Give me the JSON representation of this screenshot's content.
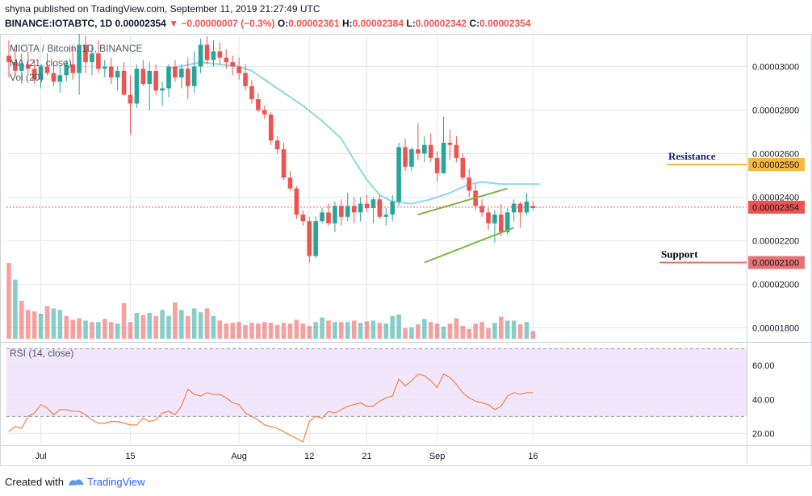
{
  "header": {
    "author": "shyna",
    "published_text": "published on TradingView.com, September 11, 2019 21:27:49 UTC",
    "symbol": "BINANCE:IOTABTC, 1D",
    "last_price": "0.00002354",
    "change": "▼ −0.00000007 (−0.3%)",
    "open_label": "O:",
    "open": "0.00002361",
    "high_label": "H:",
    "high": "0.00002384",
    "low_label": "L:",
    "low": "0.00002342",
    "close_label": "C:",
    "close": "0.00002354"
  },
  "overlay": {
    "title": "MIOTA / Bitcoin, 1D, BINANCE",
    "ma_label": "MA (21, close)",
    "vol_label": "Vol (20)"
  },
  "rsi_panel": {
    "label": "RSI (14, close)"
  },
  "footer": {
    "created_with": "Created with",
    "brand": "TradingView"
  },
  "colors": {
    "up": "#26a69a",
    "down": "#ef5350",
    "ma": "#8ed8e3",
    "resistance": "#f5b942",
    "support": "#e57373",
    "channel": "#7cb342",
    "rsi": "#f28b50",
    "rsi_band": "#f1e6fb"
  },
  "chart_data": [
    {
      "type": "candlestick",
      "title": "MIOTA / Bitcoin, 1D, BINANCE",
      "ylim": [
        1.75e-05,
        3.15e-05
      ],
      "y_ticks": [
        {
          "value": 1.8e-05,
          "label": "0.00001800"
        },
        {
          "value": 2e-05,
          "label": "0.00002000"
        },
        {
          "value": 2.2e-05,
          "label": "0.00002200"
        },
        {
          "value": 2.4e-05,
          "label": "0.00002400"
        },
        {
          "value": 2.6e-05,
          "label": "0.00002600"
        },
        {
          "value": 2.8e-05,
          "label": "0.00002800"
        },
        {
          "value": 3e-05,
          "label": "0.00003000"
        }
      ],
      "x_ticks": [
        {
          "index": 5,
          "label": "Jul"
        },
        {
          "index": 19,
          "label": "15"
        },
        {
          "index": 36,
          "label": "Aug"
        },
        {
          "index": 47,
          "label": "12"
        },
        {
          "index": 56,
          "label": "21"
        },
        {
          "index": 67,
          "label": "Sep"
        },
        {
          "index": 82,
          "label": "16"
        }
      ],
      "price_scale_labels": [
        {
          "value": 2.55e-05,
          "label": "0.00002550",
          "text": "Resistance"
        },
        {
          "value": 2.354e-05,
          "label": "0.00002354",
          "text": ""
        },
        {
          "value": 2.1e-05,
          "label": "0.00002100",
          "text": "Support"
        }
      ],
      "last_price": 2.354e-05,
      "resistance": 2.55e-05,
      "support": 2.1e-05,
      "channel": {
        "upper": [
          [
            64,
            2.32e-05
          ],
          [
            78,
            2.44e-05
          ]
        ],
        "lower": [
          [
            65,
            2.1e-05
          ],
          [
            79,
            2.26e-05
          ]
        ]
      },
      "candles": [
        [
          3.05e-05,
          3.12e-05,
          2.95e-05,
          3.02e-05
        ],
        [
          3.02e-05,
          3.08e-05,
          2.96e-05,
          2.98e-05
        ],
        [
          2.98e-05,
          3.06e-05,
          2.92e-05,
          3.01e-05
        ],
        [
          3.01e-05,
          3.07e-05,
          2.97e-05,
          2.99e-05
        ],
        [
          2.99e-05,
          3.03e-05,
          2.92e-05,
          2.94e-05
        ],
        [
          2.94e-05,
          3.01e-05,
          2.9e-05,
          3e-05
        ],
        [
          3e-05,
          3.06e-05,
          2.96e-05,
          2.97e-05
        ],
        [
          2.97e-05,
          3.02e-05,
          2.91e-05,
          2.93e-05
        ],
        [
          2.93e-05,
          3e-05,
          2.88e-05,
          2.96e-05
        ],
        [
          2.96e-05,
          3.03e-05,
          2.93e-05,
          3.01e-05
        ],
        [
          3.01e-05,
          3.1e-05,
          2.94e-05,
          2.97e-05
        ],
        [
          2.97e-05,
          3.15e-05,
          2.87e-05,
          3.1e-05
        ],
        [
          3.1e-05,
          3.14e-05,
          2.97e-05,
          3.02e-05
        ],
        [
          3.02e-05,
          3.1e-05,
          2.96e-05,
          3.06e-05
        ],
        [
          3.06e-05,
          3.12e-05,
          2.97e-05,
          2.99e-05
        ],
        [
          2.99e-05,
          3.03e-05,
          2.95e-05,
          3e-05
        ],
        [
          3e-05,
          3.04e-05,
          2.92e-05,
          2.95e-05
        ],
        [
          2.95e-05,
          3e-05,
          2.89e-05,
          2.98e-05
        ],
        [
          2.98e-05,
          3.02e-05,
          2.88e-05,
          2.87e-05
        ],
        [
          2.87e-05,
          2.96e-05,
          2.69e-05,
          2.83e-05
        ],
        [
          2.83e-05,
          3.01e-05,
          2.81e-05,
          2.99e-05
        ],
        [
          2.99e-05,
          3.03e-05,
          2.91e-05,
          2.92e-05
        ],
        [
          2.92e-05,
          3.02e-05,
          2.8e-05,
          2.98e-05
        ],
        [
          2.98e-05,
          3.01e-05,
          2.87e-05,
          2.89e-05
        ],
        [
          2.89e-05,
          2.93e-05,
          2.82e-05,
          2.9e-05
        ],
        [
          2.9e-05,
          3.01e-05,
          2.86e-05,
          3e-05
        ],
        [
          3e-05,
          3.03e-05,
          2.93e-05,
          2.95e-05
        ],
        [
          2.95e-05,
          3.01e-05,
          2.9e-05,
          2.99e-05
        ],
        [
          2.99e-05,
          3.04e-05,
          2.85e-05,
          2.91e-05
        ],
        [
          2.91e-05,
          3.07e-05,
          2.88e-05,
          3e-05
        ],
        [
          3e-05,
          3.13e-05,
          2.97e-05,
          3.1e-05
        ],
        [
          3.1e-05,
          3.14e-05,
          3.01e-05,
          3.03e-05
        ],
        [
          3.03e-05,
          3.12e-05,
          3e-05,
          3.07e-05
        ],
        [
          3.07e-05,
          3.11e-05,
          3.01e-05,
          3.04e-05
        ],
        [
          3.04e-05,
          3.08e-05,
          2.99e-05,
          3.02e-05
        ],
        [
          3.02e-05,
          3.05e-05,
          2.96e-05,
          3e-05
        ],
        [
          3e-05,
          3.04e-05,
          2.94e-05,
          2.97e-05
        ],
        [
          2.97e-05,
          3.01e-05,
          2.89e-05,
          2.91e-05
        ],
        [
          2.91e-05,
          2.94e-05,
          2.83e-05,
          2.85e-05
        ],
        [
          2.85e-05,
          2.88e-05,
          2.79e-05,
          2.8e-05
        ],
        [
          2.8e-05,
          2.82e-05,
          2.76e-05,
          2.78e-05
        ],
        [
          2.78e-05,
          2.79e-05,
          2.64e-05,
          2.66e-05
        ],
        [
          2.66e-05,
          2.68e-05,
          2.6e-05,
          2.62e-05
        ],
        [
          2.62e-05,
          2.65e-05,
          2.48e-05,
          2.49e-05
        ],
        [
          2.49e-05,
          2.52e-05,
          2.43e-05,
          2.44e-05
        ],
        [
          2.44e-05,
          2.45e-05,
          2.3e-05,
          2.32e-05
        ],
        [
          2.32e-05,
          2.34e-05,
          2.27e-05,
          2.29e-05
        ],
        [
          2.29e-05,
          2.31e-05,
          2.1e-05,
          2.13e-05
        ],
        [
          2.13e-05,
          2.31e-05,
          2.12e-05,
          2.29e-05
        ],
        [
          2.29e-05,
          2.35e-05,
          2.28e-05,
          2.33e-05
        ],
        [
          2.33e-05,
          2.37e-05,
          2.27e-05,
          2.28e-05
        ],
        [
          2.28e-05,
          2.38e-05,
          2.24e-05,
          2.36e-05
        ],
        [
          2.36e-05,
          2.39e-05,
          2.27e-05,
          2.31e-05
        ],
        [
          2.31e-05,
          2.42e-05,
          2.29e-05,
          2.36e-05
        ],
        [
          2.36e-05,
          2.4e-05,
          2.28e-05,
          2.33e-05
        ],
        [
          2.33e-05,
          2.4e-05,
          2.29e-05,
          2.37e-05
        ],
        [
          2.37e-05,
          2.41e-05,
          2.33e-05,
          2.35e-05
        ],
        [
          2.35e-05,
          2.4e-05,
          2.28e-05,
          2.39e-05
        ],
        [
          2.39e-05,
          2.41e-05,
          2.3e-05,
          2.31e-05
        ],
        [
          2.31e-05,
          2.35e-05,
          2.27e-05,
          2.32e-05
        ],
        [
          2.32e-05,
          2.41e-05,
          2.29e-05,
          2.38e-05
        ],
        [
          2.38e-05,
          2.65e-05,
          2.36e-05,
          2.63e-05
        ],
        [
          2.63e-05,
          2.67e-05,
          2.52e-05,
          2.54e-05
        ],
        [
          2.54e-05,
          2.63e-05,
          2.52e-05,
          2.62e-05
        ],
        [
          2.62e-05,
          2.74e-05,
          2.57e-05,
          2.6e-05
        ],
        [
          2.6e-05,
          2.68e-05,
          2.56e-05,
          2.64e-05
        ],
        [
          2.64e-05,
          2.69e-05,
          2.56e-05,
          2.58e-05
        ],
        [
          2.58e-05,
          2.61e-05,
          2.47e-05,
          2.51e-05
        ],
        [
          2.51e-05,
          2.77e-05,
          2.51e-05,
          2.65e-05
        ],
        [
          2.65e-05,
          2.71e-05,
          2.57e-05,
          2.64e-05
        ],
        [
          2.64e-05,
          2.68e-05,
          2.56e-05,
          2.58e-05
        ],
        [
          2.58e-05,
          2.6e-05,
          2.48e-05,
          2.49e-05
        ],
        [
          2.49e-05,
          2.53e-05,
          2.4e-05,
          2.43e-05
        ],
        [
          2.43e-05,
          2.46e-05,
          2.34e-05,
          2.36e-05
        ],
        [
          2.36e-05,
          2.39e-05,
          2.31e-05,
          2.33e-05
        ],
        [
          2.33e-05,
          2.35e-05,
          2.25e-05,
          2.28e-05
        ],
        [
          2.28e-05,
          2.34e-05,
          2.19e-05,
          2.32e-05
        ],
        [
          2.32e-05,
          2.37e-05,
          2.22e-05,
          2.24e-05
        ],
        [
          2.24e-05,
          2.35e-05,
          2.23e-05,
          2.33e-05
        ],
        [
          2.33e-05,
          2.39e-05,
          2.29e-05,
          2.37e-05
        ],
        [
          2.37e-05,
          2.38e-05,
          2.26e-05,
          2.33e-05
        ],
        [
          2.33e-05,
          2.42e-05,
          2.32e-05,
          2.38e-05
        ],
        [
          2.36e-05,
          2.38e-05,
          2.34e-05,
          2.35e-05
        ]
      ],
      "ma21": [
        [
          25,
          2.99e-05
        ],
        [
          30,
          3.02e-05
        ],
        [
          36,
          3e-05
        ],
        [
          38,
          2.98e-05
        ],
        [
          42,
          2.9e-05
        ],
        [
          46,
          2.82e-05
        ],
        [
          49,
          2.75e-05
        ],
        [
          52,
          2.67e-05
        ],
        [
          54,
          2.57e-05
        ],
        [
          56,
          2.48e-05
        ],
        [
          58,
          2.41e-05
        ],
        [
          60,
          2.38e-05
        ],
        [
          63,
          2.37e-05
        ],
        [
          66,
          2.39e-05
        ],
        [
          69,
          2.42e-05
        ],
        [
          72,
          2.46e-05
        ],
        [
          74,
          2.47e-05
        ],
        [
          77,
          2.46e-05
        ],
        [
          80,
          2.46e-05
        ],
        [
          83,
          2.46e-05
        ]
      ],
      "volume": {
        "max": 100,
        "values": [
          100,
          78,
          50,
          38,
          36,
          33,
          43,
          40,
          38,
          30,
          25,
          27,
          24,
          22,
          22,
          26,
          22,
          20,
          47,
          22,
          34,
          31,
          34,
          30,
          38,
          30,
          48,
          38,
          30,
          40,
          35,
          40,
          30,
          24,
          20,
          21,
          22,
          18,
          21,
          20,
          22,
          21,
          18,
          21,
          20,
          25,
          20,
          17,
          22,
          28,
          24,
          22,
          22,
          22,
          24,
          21,
          23,
          24,
          21,
          20,
          30,
          32,
          14,
          15,
          19,
          26,
          22,
          20,
          16,
          20,
          27,
          17,
          13,
          20,
          22,
          14,
          21,
          29,
          24,
          24,
          19,
          22,
          10
        ],
        "up": [
          0,
          1,
          0,
          0,
          0,
          1,
          0,
          1,
          1,
          0,
          0,
          0,
          1,
          0,
          1,
          0,
          0,
          1,
          0,
          0,
          1,
          0,
          1,
          0,
          1,
          1,
          0,
          1,
          0,
          1,
          1,
          0,
          1,
          0,
          0,
          0,
          0,
          0,
          0,
          0,
          0,
          0,
          0,
          0,
          0,
          0,
          0,
          0,
          1,
          1,
          0,
          1,
          0,
          1,
          0,
          1,
          0,
          1,
          0,
          1,
          1,
          1,
          0,
          1,
          0,
          1,
          0,
          0,
          1,
          0,
          0,
          0,
          0,
          0,
          0,
          0,
          1,
          0,
          1,
          1,
          0,
          1,
          0
        ]
      }
    },
    {
      "type": "line",
      "title": "RSI (14, close)",
      "ylim": [
        14,
        72
      ],
      "band": [
        30,
        70
      ],
      "y_ticks": [
        {
          "value": 20,
          "label": "20.00"
        },
        {
          "value": 40,
          "label": "40.00"
        },
        {
          "value": 60,
          "label": "60.00"
        }
      ],
      "series": [
        {
          "values": [
            21,
            24,
            23,
            30,
            32,
            37,
            35,
            31,
            34,
            34,
            33,
            33,
            31,
            28,
            26,
            26,
            27,
            27,
            26,
            25,
            25,
            29,
            27,
            28,
            32,
            33,
            31,
            36,
            46,
            43,
            42,
            44,
            43,
            43,
            41,
            38,
            37,
            32,
            30,
            28,
            25,
            24,
            23,
            21,
            19,
            17,
            15,
            27,
            30,
            29,
            33,
            32,
            34,
            36,
            37,
            38,
            36,
            36,
            39,
            41,
            42,
            52,
            48,
            51,
            55,
            54,
            51,
            47,
            55,
            53,
            49,
            44,
            41,
            39,
            38,
            37,
            34,
            36,
            42,
            44,
            43,
            44,
            44
          ]
        }
      ]
    }
  ]
}
